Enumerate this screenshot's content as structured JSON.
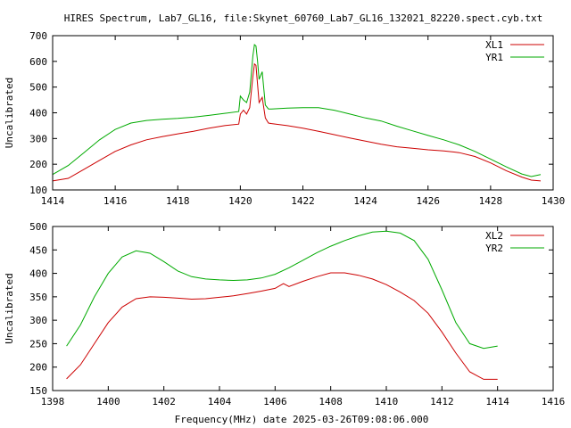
{
  "title": "HIRES Spectrum, Lab7_GL16, file:Skynet_60760_Lab7_GL16_132021_82220.spect.cyb.txt",
  "footer": "Frequency(MHz) date 2025-03-26T09:08:06.000",
  "chart_data": [
    {
      "type": "line",
      "ylabel": "Uncalibrated",
      "xlim": [
        1414,
        1430
      ],
      "ylim": [
        100,
        700
      ],
      "xticks": [
        1414,
        1416,
        1418,
        1420,
        1422,
        1424,
        1426,
        1428,
        1430
      ],
      "yticks": [
        100,
        200,
        300,
        400,
        500,
        600,
        700
      ],
      "grid": false,
      "legend": "top-right",
      "series": [
        {
          "name": "XL1",
          "color": "#cc0000",
          "x": [
            1414.0,
            1414.5,
            1415.0,
            1415.5,
            1416.0,
            1416.5,
            1417.0,
            1417.5,
            1418.0,
            1418.5,
            1419.0,
            1419.5,
            1419.95,
            1420.0,
            1420.1,
            1420.2,
            1420.3,
            1420.4,
            1420.45,
            1420.5,
            1420.55,
            1420.6,
            1420.7,
            1420.8,
            1420.9,
            1421.0,
            1421.5,
            1422.0,
            1422.5,
            1423.0,
            1423.5,
            1424.0,
            1424.5,
            1425.0,
            1425.5,
            1426.0,
            1426.5,
            1427.0,
            1427.5,
            1428.0,
            1428.5,
            1429.0,
            1429.3,
            1429.6
          ],
          "y": [
            135,
            145,
            180,
            215,
            250,
            275,
            295,
            307,
            318,
            328,
            340,
            350,
            356,
            395,
            410,
            395,
            420,
            540,
            590,
            585,
            510,
            440,
            460,
            380,
            360,
            358,
            350,
            340,
            328,
            315,
            302,
            290,
            278,
            268,
            262,
            256,
            252,
            245,
            230,
            205,
            175,
            150,
            138,
            135
          ]
        },
        {
          "name": "YR1",
          "color": "#00aa00",
          "x": [
            1414.0,
            1414.5,
            1415.0,
            1415.5,
            1416.0,
            1416.5,
            1417.0,
            1417.5,
            1418.0,
            1418.5,
            1419.0,
            1419.5,
            1419.95,
            1420.0,
            1420.1,
            1420.2,
            1420.3,
            1420.4,
            1420.45,
            1420.5,
            1420.55,
            1420.6,
            1420.7,
            1420.8,
            1420.9,
            1421.0,
            1421.5,
            1422.0,
            1422.5,
            1423.0,
            1423.5,
            1424.0,
            1424.5,
            1425.0,
            1425.5,
            1426.0,
            1426.5,
            1427.0,
            1427.5,
            1428.0,
            1428.5,
            1429.0,
            1429.3,
            1429.6
          ],
          "y": [
            160,
            195,
            245,
            295,
            335,
            360,
            370,
            375,
            378,
            383,
            390,
            398,
            405,
            465,
            450,
            440,
            480,
            620,
            665,
            660,
            600,
            530,
            560,
            430,
            415,
            415,
            418,
            420,
            420,
            410,
            395,
            380,
            368,
            348,
            330,
            312,
            295,
            275,
            250,
            220,
            190,
            162,
            152,
            160
          ]
        }
      ]
    },
    {
      "type": "line",
      "ylabel": "Uncalibrated",
      "xlim": [
        1398,
        1416
      ],
      "ylim": [
        150,
        500
      ],
      "xticks": [
        1398,
        1400,
        1402,
        1404,
        1406,
        1408,
        1410,
        1412,
        1414,
        1416
      ],
      "yticks": [
        150,
        200,
        250,
        300,
        350,
        400,
        450,
        500
      ],
      "grid": false,
      "legend": "top-right",
      "series": [
        {
          "name": "XL2",
          "color": "#cc0000",
          "x": [
            1398.5,
            1399.0,
            1399.5,
            1400.0,
            1400.5,
            1401.0,
            1401.5,
            1402.0,
            1402.5,
            1403.0,
            1403.5,
            1404.0,
            1404.5,
            1405.0,
            1405.5,
            1406.0,
            1406.3,
            1406.5,
            1407.0,
            1407.5,
            1408.0,
            1408.5,
            1409.0,
            1409.5,
            1410.0,
            1410.5,
            1411.0,
            1411.5,
            1412.0,
            1412.5,
            1413.0,
            1413.5,
            1414.0
          ],
          "y": [
            175,
            205,
            250,
            295,
            328,
            346,
            350,
            349,
            347,
            345,
            346,
            349,
            352,
            357,
            362,
            368,
            378,
            372,
            383,
            393,
            401,
            401,
            396,
            388,
            376,
            360,
            342,
            315,
            275,
            230,
            190,
            174,
            174
          ]
        },
        {
          "name": "YR2",
          "color": "#00aa00",
          "x": [
            1398.5,
            1399.0,
            1399.5,
            1400.0,
            1400.5,
            1401.0,
            1401.5,
            1402.0,
            1402.5,
            1403.0,
            1403.5,
            1404.0,
            1404.5,
            1405.0,
            1405.5,
            1406.0,
            1406.5,
            1407.0,
            1407.5,
            1408.0,
            1408.5,
            1409.0,
            1409.5,
            1410.0,
            1410.5,
            1411.0,
            1411.5,
            1412.0,
            1412.5,
            1413.0,
            1413.5,
            1414.0
          ],
          "y": [
            245,
            290,
            350,
            400,
            435,
            448,
            443,
            425,
            405,
            393,
            388,
            386,
            385,
            386,
            390,
            398,
            412,
            428,
            444,
            458,
            470,
            480,
            488,
            490,
            486,
            470,
            430,
            365,
            295,
            250,
            240,
            245
          ]
        }
      ]
    }
  ]
}
